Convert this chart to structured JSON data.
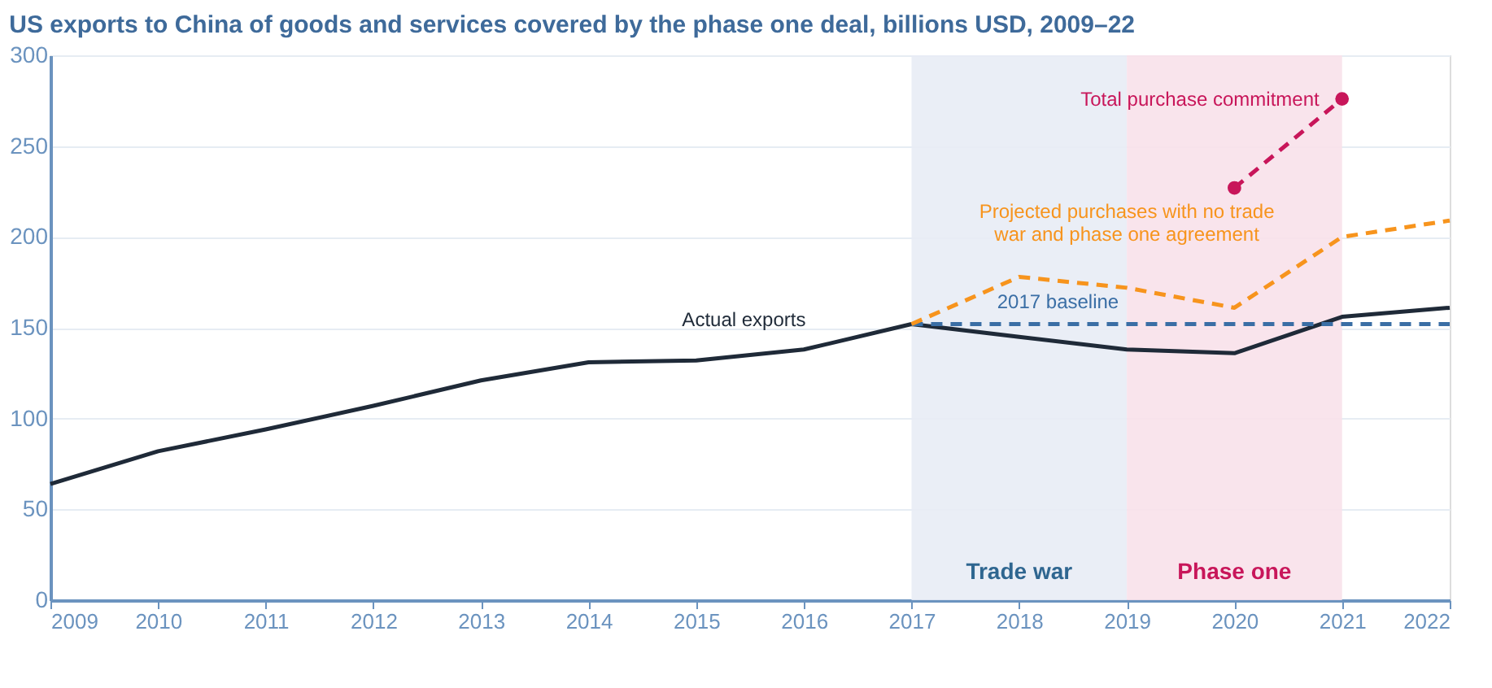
{
  "chart_data": {
    "type": "line",
    "title": "US exports to China of goods and services covered by the phase one deal, billions USD, 2009–22",
    "x": [
      2009,
      2010,
      2011,
      2012,
      2013,
      2014,
      2015,
      2016,
      2017,
      2018,
      2019,
      2020,
      2021,
      2022
    ],
    "series": [
      {
        "name": "Actual exports",
        "color": "#1f2a38",
        "line_style": "solid",
        "values": [
          64,
          82,
          94,
          107,
          121,
          131,
          132,
          138,
          152,
          145,
          138,
          136,
          156,
          161
        ]
      },
      {
        "name": "2017  baseline",
        "color": "#3a6ea5",
        "line_style": "dashed",
        "x": [
          2017,
          2022
        ],
        "values": [
          152,
          152
        ]
      },
      {
        "name": "Projected purchases with no trade war and phase one agreement",
        "color": "#f7941d",
        "line_style": "dashed",
        "x": [
          2017,
          2018,
          2019,
          2020,
          2021,
          2022
        ],
        "values": [
          152,
          178,
          172,
          161,
          200,
          209
        ]
      },
      {
        "name": "Total purchase commitment",
        "color": "#c8165a",
        "line_style": "dashed",
        "marker": "circle",
        "x": [
          2020,
          2021
        ],
        "values": [
          227,
          276
        ]
      }
    ],
    "bands": [
      {
        "axis": "x",
        "from": 2017,
        "to": 2019,
        "label": "Trade war",
        "color": "#e8ecf5"
      },
      {
        "axis": "x",
        "from": 2019,
        "to": 2021,
        "label": "Phase one",
        "color": "#f8e1ea"
      }
    ],
    "xlim": [
      2009,
      2022
    ],
    "xticks": [
      2009,
      2010,
      2011,
      2012,
      2013,
      2014,
      2015,
      2016,
      2017,
      2018,
      2019,
      2020,
      2021,
      2022
    ],
    "ylim": [
      0,
      300
    ],
    "yticks": [
      0,
      50,
      100,
      150,
      200,
      250,
      300
    ],
    "grid": "y"
  }
}
